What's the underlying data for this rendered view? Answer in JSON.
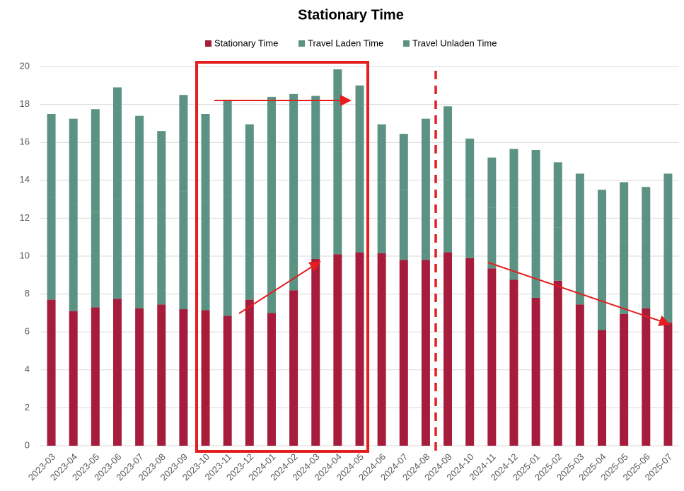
{
  "chart_data": {
    "type": "stacked_bar",
    "title": "Stationary Time",
    "categories": [
      "2023-03",
      "2023-04",
      "2023-05",
      "2023-06",
      "2023-07",
      "2023-08",
      "2023-09",
      "2023-10",
      "2023-11",
      "2023-12",
      "2024-01",
      "2024-02",
      "2024-03",
      "2024-04",
      "2024-05",
      "2024-06",
      "2024-07",
      "2024-08",
      "2024-09",
      "2024-10",
      "2024-11",
      "2024-12",
      "2025-01",
      "2025-02",
      "2025-03",
      "2025-04",
      "2025-05",
      "2025-06",
      "2025-07"
    ],
    "series": [
      {
        "name": "Stationary Time",
        "color": "#a61c3c",
        "values": [
          7.7,
          7.1,
          7.3,
          7.75,
          7.25,
          7.45,
          7.2,
          7.15,
          6.85,
          7.7,
          7.0,
          8.2,
          9.85,
          10.1,
          10.2,
          10.15,
          9.8,
          9.8,
          10.2,
          9.9,
          9.35,
          8.75,
          7.8,
          8.7,
          7.45,
          6.1,
          6.95,
          7.25,
          6.5
        ]
      },
      {
        "name": "Travel Laden Time",
        "color": "#5b9283",
        "values": [
          5.4,
          5.6,
          5.0,
          5.25,
          5.6,
          5.0,
          6.2,
          5.7,
          6.3,
          5.1,
          6.3,
          5.7,
          4.7,
          5.4,
          4.8,
          3.7,
          3.7,
          4.1,
          3.8,
          3.1,
          3.2,
          3.8,
          3.9,
          2.8,
          3.8,
          3.7,
          3.8,
          3.5,
          4.3
        ]
      },
      {
        "name": "Travel Unladen Time",
        "color": "#5b9283",
        "values": [
          4.4,
          4.55,
          5.45,
          5.9,
          4.55,
          4.15,
          5.1,
          4.65,
          5.1,
          4.15,
          5.1,
          4.65,
          3.9,
          4.35,
          4.0,
          3.1,
          2.95,
          3.35,
          3.9,
          3.2,
          2.65,
          3.1,
          3.9,
          3.45,
          3.1,
          3.7,
          3.15,
          2.9,
          3.55
        ]
      }
    ],
    "ylim": [
      0,
      20
    ],
    "yticks": [
      0,
      2,
      4,
      6,
      8,
      10,
      12,
      14,
      16,
      18,
      20
    ],
    "grid": true,
    "legend": "top"
  }
}
